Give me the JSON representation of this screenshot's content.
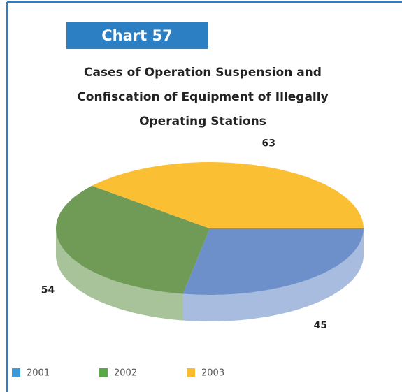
{
  "header": "Chart 57",
  "chart_data": {
    "type": "pie3d",
    "title": [
      "Cases of Operation Suspension and",
      "Confiscation of Equipment of Illegally",
      "Operating Stations"
    ],
    "categories": [
      "2001",
      "2002",
      "2003"
    ],
    "values": [
      45,
      54,
      63
    ],
    "colors": [
      "#6d8fca",
      "#6f9b57",
      "#fbbf33"
    ],
    "legend_colors": [
      "#3a9ad9",
      "#5aa946",
      "#fbbc2e"
    ]
  }
}
